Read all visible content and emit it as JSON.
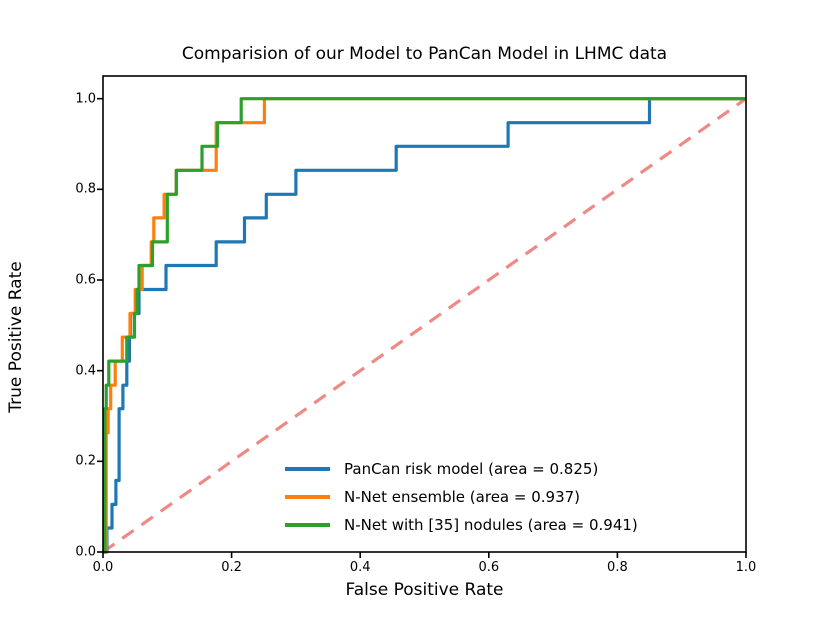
{
  "chart_data": {
    "type": "line",
    "subtype": "roc-step-curves",
    "title": "Comparision of our Model to PanCan Model in LHMC data",
    "xlabel": "False Positive Rate",
    "ylabel": "True Positive Rate",
    "xlim": [
      0.0,
      1.0
    ],
    "ylim": [
      0.0,
      1.05
    ],
    "grid": false,
    "legend_position": "lower right",
    "xticks": [
      0.0,
      0.2,
      0.4,
      0.6,
      0.8,
      1.0
    ],
    "yticks": [
      0.0,
      0.2,
      0.4,
      0.6,
      0.8,
      1.0
    ],
    "xtick_labels": [
      "0.0",
      "0.2",
      "0.4",
      "0.6",
      "0.8",
      "1.0"
    ],
    "ytick_labels": [
      "0.0",
      "0.2",
      "0.4",
      "0.6",
      "0.8",
      "1.0"
    ],
    "axis_color": "#000000",
    "series": [
      {
        "id": "chance-diagonal",
        "name": "chance",
        "color": "#ee8a85",
        "style": "dashed",
        "in_legend": false,
        "points": [
          [
            0,
            0
          ],
          [
            1,
            1
          ]
        ]
      },
      {
        "id": "roc-curve-pancan",
        "name": "PanCan risk model (area = 0.825)",
        "area": 0.825,
        "color": "#1f77b4",
        "style": "solid",
        "in_legend": true,
        "points": [
          [
            0,
            0
          ],
          [
            0.006,
            0
          ],
          [
            0.006,
            0.053
          ],
          [
            0.014,
            0.053
          ],
          [
            0.014,
            0.105
          ],
          [
            0.02,
            0.105
          ],
          [
            0.02,
            0.158
          ],
          [
            0.025,
            0.158
          ],
          [
            0.025,
            0.316
          ],
          [
            0.031,
            0.316
          ],
          [
            0.031,
            0.368
          ],
          [
            0.037,
            0.368
          ],
          [
            0.037,
            0.421
          ],
          [
            0.041,
            0.421
          ],
          [
            0.041,
            0.474
          ],
          [
            0.043,
            0.474
          ],
          [
            0.043,
            0.526
          ],
          [
            0.056,
            0.526
          ],
          [
            0.056,
            0.579
          ],
          [
            0.098,
            0.579
          ],
          [
            0.098,
            0.632
          ],
          [
            0.176,
            0.632
          ],
          [
            0.176,
            0.684
          ],
          [
            0.22,
            0.684
          ],
          [
            0.22,
            0.737
          ],
          [
            0.254,
            0.737
          ],
          [
            0.254,
            0.789
          ],
          [
            0.3,
            0.789
          ],
          [
            0.3,
            0.842
          ],
          [
            0.456,
            0.842
          ],
          [
            0.456,
            0.895
          ],
          [
            0.63,
            0.895
          ],
          [
            0.63,
            0.947
          ],
          [
            0.85,
            0.947
          ],
          [
            0.85,
            1
          ],
          [
            1,
            1
          ]
        ]
      },
      {
        "id": "roc-curve-nnet-ensemble",
        "name": "N-Net ensemble (area = 0.937)",
        "area": 0.937,
        "color": "#ff7f0e",
        "style": "solid",
        "in_legend": true,
        "points": [
          [
            0,
            0
          ],
          [
            0.005,
            0
          ],
          [
            0.005,
            0.263
          ],
          [
            0.008,
            0.263
          ],
          [
            0.008,
            0.316
          ],
          [
            0.012,
            0.316
          ],
          [
            0.012,
            0.368
          ],
          [
            0.019,
            0.368
          ],
          [
            0.019,
            0.421
          ],
          [
            0.03,
            0.421
          ],
          [
            0.03,
            0.474
          ],
          [
            0.042,
            0.474
          ],
          [
            0.042,
            0.526
          ],
          [
            0.05,
            0.526
          ],
          [
            0.05,
            0.579
          ],
          [
            0.061,
            0.579
          ],
          [
            0.061,
            0.632
          ],
          [
            0.075,
            0.632
          ],
          [
            0.075,
            0.684
          ],
          [
            0.079,
            0.684
          ],
          [
            0.079,
            0.737
          ],
          [
            0.095,
            0.737
          ],
          [
            0.095,
            0.789
          ],
          [
            0.114,
            0.789
          ],
          [
            0.114,
            0.842
          ],
          [
            0.176,
            0.842
          ],
          [
            0.176,
            0.947
          ],
          [
            0.251,
            0.947
          ],
          [
            0.251,
            1
          ],
          [
            1,
            1
          ]
        ]
      },
      {
        "id": "roc-curve-nnet-nodules",
        "name": "N-Net with [35] nodules (area = 0.941)",
        "area": 0.941,
        "color": "#2ca02c",
        "style": "solid",
        "in_legend": true,
        "points": [
          [
            0,
            0
          ],
          [
            0.003,
            0
          ],
          [
            0.003,
            0.316
          ],
          [
            0.005,
            0.316
          ],
          [
            0.005,
            0.368
          ],
          [
            0.009,
            0.368
          ],
          [
            0.009,
            0.421
          ],
          [
            0.037,
            0.421
          ],
          [
            0.037,
            0.474
          ],
          [
            0.049,
            0.474
          ],
          [
            0.049,
            0.526
          ],
          [
            0.053,
            0.526
          ],
          [
            0.053,
            0.579
          ],
          [
            0.056,
            0.579
          ],
          [
            0.056,
            0.632
          ],
          [
            0.077,
            0.632
          ],
          [
            0.077,
            0.684
          ],
          [
            0.1,
            0.684
          ],
          [
            0.1,
            0.789
          ],
          [
            0.114,
            0.789
          ],
          [
            0.114,
            0.842
          ],
          [
            0.154,
            0.842
          ],
          [
            0.154,
            0.895
          ],
          [
            0.178,
            0.895
          ],
          [
            0.178,
            0.947
          ],
          [
            0.215,
            0.947
          ],
          [
            0.215,
            1
          ],
          [
            1,
            1
          ]
        ]
      }
    ]
  }
}
